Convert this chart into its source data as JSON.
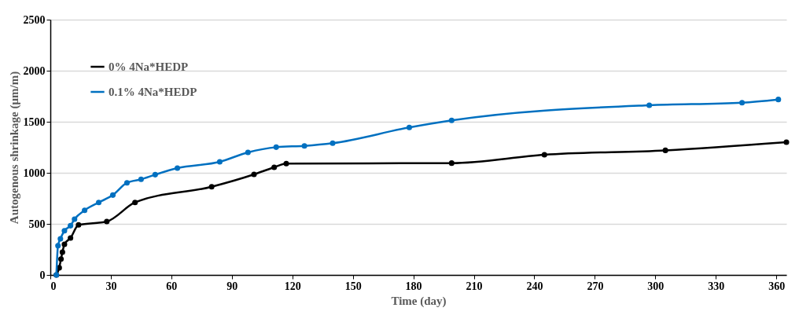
{
  "chart_data": {
    "type": "line",
    "xlabel": "Time (day)",
    "ylabel": "Autogenous shrinkage (μm/m)",
    "xlim": [
      0,
      365
    ],
    "xticks": [
      0,
      30,
      60,
      90,
      120,
      150,
      180,
      210,
      240,
      270,
      300,
      330,
      360
    ],
    "ylim": [
      0,
      2500
    ],
    "yticks": [
      0,
      500,
      1000,
      1500,
      2000,
      2500
    ],
    "grid": "y",
    "legend": "top left",
    "marker": "circle",
    "line_style": "solid",
    "series": [
      {
        "name": "0% 4Na*HEDP",
        "color": "#000000",
        "x": [
          3,
          4.4,
          5.3,
          6,
          7,
          10,
          14,
          28,
          42,
          80,
          101,
          111,
          117,
          199,
          245,
          305,
          365
        ],
        "values": [
          0,
          70,
          156,
          223,
          300,
          362,
          490,
          523,
          710,
          864,
          985,
          1054,
          1090,
          1095,
          1177,
          1220,
          1300
        ]
      },
      {
        "name": "0.1% 4Na*HEDP",
        "color": "#0070c0",
        "x": [
          3,
          3.8,
          5,
          7,
          10,
          12,
          17,
          24,
          31,
          38,
          45,
          52,
          63,
          84,
          98,
          112,
          126,
          140,
          178,
          199,
          297,
          343,
          361
        ],
        "values": [
          0,
          287,
          354,
          433,
          482,
          546,
          633,
          710,
          782,
          902,
          936,
          982,
          1046,
          1108,
          1200,
          1251,
          1264,
          1290,
          1444,
          1513,
          1662,
          1687,
          1718
        ]
      }
    ]
  }
}
